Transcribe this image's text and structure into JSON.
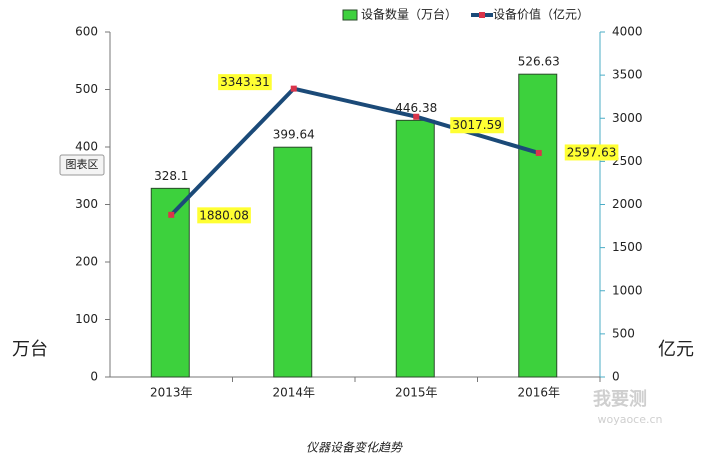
{
  "chart_data": {
    "type": "bar",
    "categories": [
      "2013年",
      "2014年",
      "2015年",
      "2016年"
    ],
    "series": [
      {
        "name": "设备数量（万台）",
        "type": "bar",
        "color": "#3dd13d",
        "values": [
          328.1,
          399.64,
          446.38,
          526.63
        ]
      },
      {
        "name": "设备价值（亿元）",
        "type": "line",
        "axis": "y2",
        "color": "#1b4a78",
        "marker_color": "#d9344a",
        "values": [
          1880.08,
          3343.31,
          3017.59,
          2597.63
        ]
      }
    ],
    "ylim": [
      0,
      600
    ],
    "yticks": [
      0,
      100,
      200,
      300,
      400,
      500,
      600
    ],
    "y2lim": [
      0,
      4000
    ],
    "y2ticks": [
      0,
      500,
      1000,
      1500,
      2000,
      2500,
      3000,
      3500,
      4000
    ],
    "ylabel": "万台",
    "y2label": "亿元",
    "grid": false
  },
  "caption": "仪器设备变化趋势",
  "tooltip": "图表区",
  "watermark": {
    "brand": "我要测",
    "url": "woyaoce.cn"
  }
}
